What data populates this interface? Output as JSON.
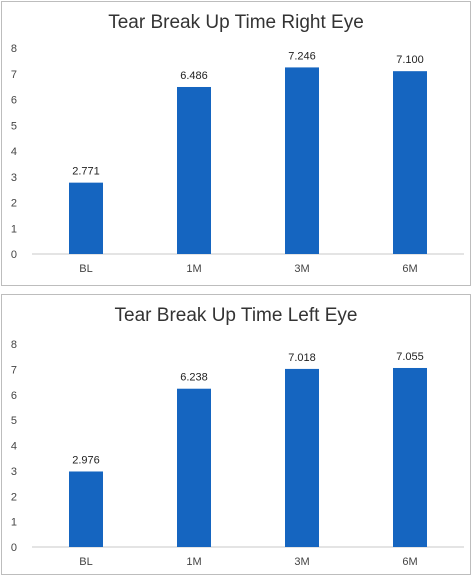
{
  "chart_data": [
    {
      "type": "bar",
      "title": "Tear Break Up Time Right Eye",
      "categories": [
        "BL",
        "1M",
        "3M",
        "6M"
      ],
      "values": [
        2.771,
        6.486,
        7.246,
        7.1
      ],
      "value_labels": [
        "2.771",
        "6.486",
        "7.246",
        "7.100"
      ],
      "yticks": [
        "0",
        "1",
        "2",
        "3",
        "4",
        "5",
        "6",
        "7",
        "8"
      ],
      "ylim": [
        0,
        8
      ],
      "xlabel": "",
      "ylabel": "",
      "grid": false,
      "bar_color": "#1565c0"
    },
    {
      "type": "bar",
      "title": "Tear Break Up Time Left Eye",
      "categories": [
        "BL",
        "1M",
        "3M",
        "6M"
      ],
      "values": [
        2.976,
        6.238,
        7.018,
        7.055
      ],
      "value_labels": [
        "2.976",
        "6.238",
        "7.018",
        "7.055"
      ],
      "yticks": [
        "0",
        "1",
        "2",
        "3",
        "4",
        "5",
        "6",
        "7",
        "8"
      ],
      "ylim": [
        0,
        8
      ],
      "xlabel": "",
      "ylabel": "",
      "grid": false,
      "bar_color": "#1565c0"
    }
  ]
}
